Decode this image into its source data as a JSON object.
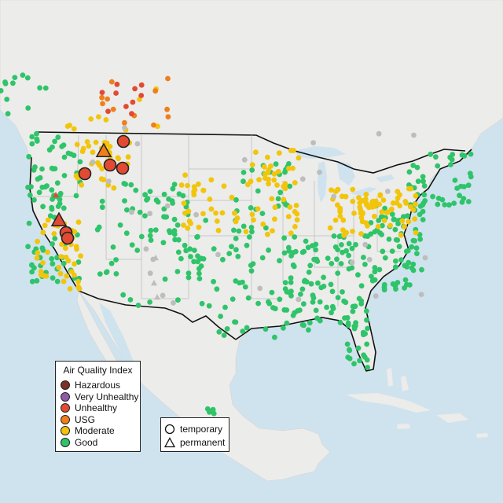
{
  "legend": {
    "title": "Air Quality Index",
    "items": [
      {
        "label": "Hazardous",
        "color": "#7e2f28"
      },
      {
        "label": "Very Unhealthy",
        "color": "#8e5aa8"
      },
      {
        "label": "Unhealthy",
        "color": "#e24a33"
      },
      {
        "label": "USG",
        "color": "#f07e1d"
      },
      {
        "label": "Moderate",
        "color": "#f2c50c"
      },
      {
        "label": "Good",
        "color": "#2fc46a"
      }
    ]
  },
  "shape_legend": {
    "items": [
      {
        "label": "temporary",
        "icon": "circle-icon"
      },
      {
        "label": "permanent",
        "icon": "triangle-icon"
      }
    ]
  },
  "colors": {
    "ocean": "#cfe3ee",
    "land": "#ececea",
    "border": "#111111",
    "state_line": "#bbbbbb",
    "no_data": "#bdbdbd"
  }
}
